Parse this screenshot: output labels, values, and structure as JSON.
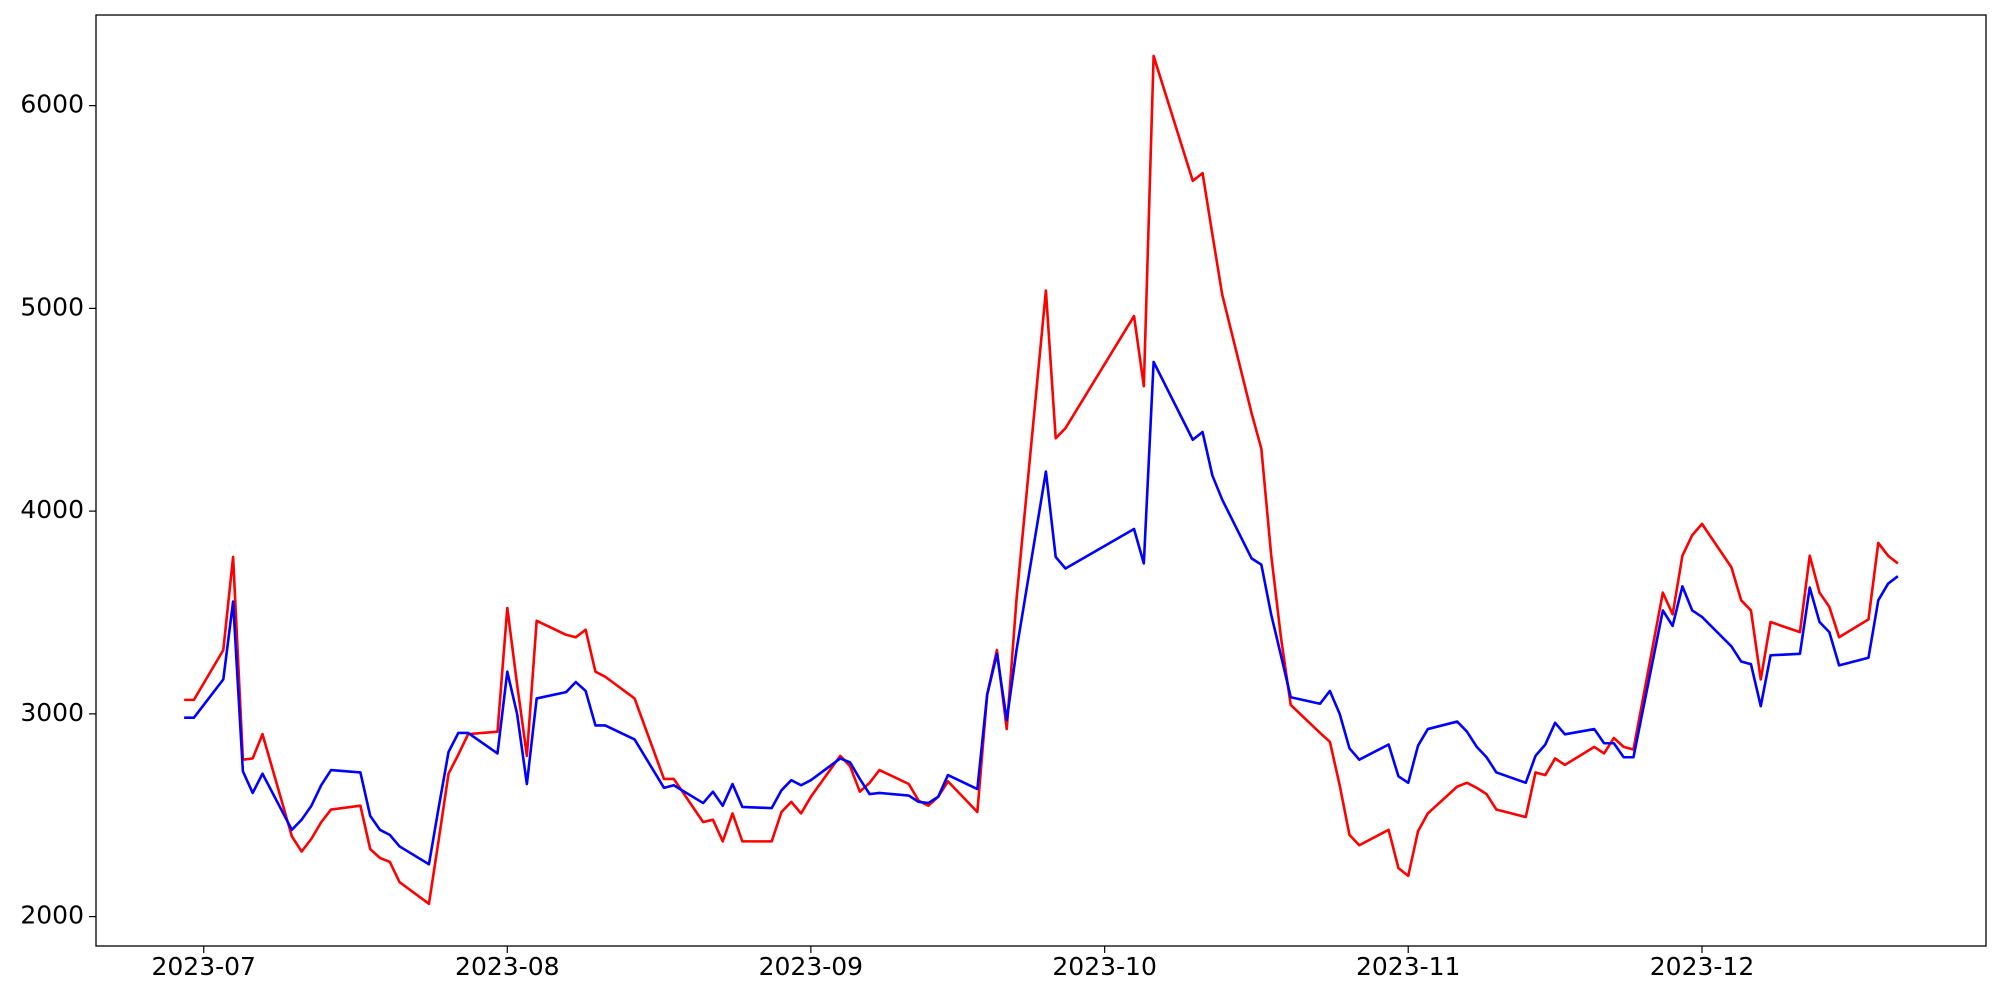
{
  "chart_data": {
    "type": "line",
    "x": [
      "2023-06-29",
      "2023-06-30",
      "2023-07-03",
      "2023-07-04",
      "2023-07-05",
      "2023-07-06",
      "2023-07-07",
      "2023-07-10",
      "2023-07-11",
      "2023-07-12",
      "2023-07-13",
      "2023-07-14",
      "2023-07-17",
      "2023-07-18",
      "2023-07-19",
      "2023-07-20",
      "2023-07-21",
      "2023-07-24",
      "2023-07-25",
      "2023-07-26",
      "2023-07-27",
      "2023-07-28",
      "2023-07-31",
      "2023-08-01",
      "2023-08-02",
      "2023-08-03",
      "2023-08-04",
      "2023-08-07",
      "2023-08-08",
      "2023-08-09",
      "2023-08-10",
      "2023-08-11",
      "2023-08-14",
      "2023-08-17",
      "2023-08-18",
      "2023-08-21",
      "2023-08-22",
      "2023-08-23",
      "2023-08-24",
      "2023-08-25",
      "2023-08-28",
      "2023-08-29",
      "2023-08-30",
      "2023-08-31",
      "2023-09-01",
      "2023-09-04",
      "2023-09-05",
      "2023-09-06",
      "2023-09-07",
      "2023-09-08",
      "2023-09-11",
      "2023-09-12",
      "2023-09-13",
      "2023-09-14",
      "2023-09-15",
      "2023-09-18",
      "2023-09-19",
      "2023-09-20",
      "2023-09-21",
      "2023-09-22",
      "2023-09-25",
      "2023-09-26",
      "2023-09-27",
      "2023-10-04",
      "2023-10-05",
      "2023-10-06",
      "2023-10-10",
      "2023-10-11",
      "2023-10-12",
      "2023-10-13",
      "2023-10-16",
      "2023-10-17",
      "2023-10-18",
      "2023-10-19",
      "2023-10-20",
      "2023-10-23",
      "2023-10-24",
      "2023-10-25",
      "2023-10-26",
      "2023-10-27",
      "2023-10-30",
      "2023-10-31",
      "2023-11-01",
      "2023-11-02",
      "2023-11-03",
      "2023-11-06",
      "2023-11-07",
      "2023-11-08",
      "2023-11-09",
      "2023-11-10",
      "2023-11-13",
      "2023-11-14",
      "2023-11-15",
      "2023-11-16",
      "2023-11-17",
      "2023-11-20",
      "2023-11-21",
      "2023-11-22",
      "2023-11-23",
      "2023-11-24",
      "2023-11-27",
      "2023-11-28",
      "2023-11-29",
      "2023-11-30",
      "2023-12-01",
      "2023-12-04",
      "2023-12-05",
      "2023-12-06",
      "2023-12-07",
      "2023-12-08",
      "2023-12-11",
      "2023-12-12",
      "2023-12-13",
      "2023-12-14",
      "2023-12-15",
      "2023-12-18",
      "2023-12-19",
      "2023-12-20",
      "2023-12-21"
    ],
    "series": [
      {
        "color": "red",
        "values": [
          3069,
          3069,
          3315,
          3774,
          2774,
          2780,
          2900,
          2396,
          2321,
          2384,
          2466,
          2528,
          2547,
          2333,
          2289,
          2270,
          2170,
          2063,
          2380,
          2705,
          2799,
          2900,
          2912,
          3522,
          3145,
          2793,
          3459,
          3390,
          3378,
          3415,
          3208,
          3183,
          3076,
          2679,
          2679,
          2466,
          2478,
          2371,
          2509,
          2371,
          2371,
          2516,
          2566,
          2509,
          2591,
          2793,
          2742,
          2616,
          2660,
          2723,
          2654,
          2572,
          2547,
          2591,
          2667,
          2516,
          3094,
          3315,
          2925,
          3566,
          5088,
          4359,
          4409,
          4962,
          4616,
          6245,
          5629,
          5667,
          5365,
          5069,
          4484,
          4308,
          3786,
          3378,
          3044,
          2906,
          2862,
          2648,
          2403,
          2352,
          2428,
          2239,
          2201,
          2421,
          2509,
          2641,
          2660,
          2635,
          2604,
          2528,
          2491,
          2711,
          2698,
          2780,
          2748,
          2837,
          2805,
          2881,
          2837,
          2824,
          3598,
          3491,
          3780,
          3881,
          3937,
          3723,
          3560,
          3510,
          3170,
          3453,
          3403,
          3780,
          3598,
          3528,
          3378,
          3466,
          3843,
          3780,
          3742
        ]
      },
      {
        "color": "blue",
        "values": [
          2981,
          2981,
          3170,
          3554,
          2717,
          2610,
          2705,
          2428,
          2478,
          2547,
          2648,
          2723,
          2711,
          2497,
          2428,
          2403,
          2346,
          2258,
          2540,
          2812,
          2906,
          2906,
          2805,
          3208,
          3000,
          2654,
          3076,
          3107,
          3157,
          3113,
          2943,
          2943,
          2874,
          2635,
          2648,
          2560,
          2616,
          2547,
          2654,
          2541,
          2535,
          2623,
          2673,
          2648,
          2673,
          2780,
          2761,
          2679,
          2604,
          2610,
          2597,
          2566,
          2560,
          2591,
          2698,
          2629,
          3094,
          3296,
          2969,
          3315,
          4195,
          3774,
          3717,
          3912,
          3742,
          4736,
          4352,
          4390,
          4176,
          4057,
          3767,
          3736,
          3491,
          3289,
          3082,
          3050,
          3113,
          3000,
          2830,
          2774,
          2849,
          2692,
          2660,
          2843,
          2925,
          2962,
          2912,
          2837,
          2786,
          2711,
          2660,
          2793,
          2849,
          2956,
          2899,
          2925,
          2855,
          2855,
          2786,
          2786,
          3510,
          3434,
          3629,
          3510,
          3478,
          3333,
          3258,
          3245,
          3038,
          3289,
          3296,
          3623,
          3453,
          3403,
          3239,
          3277,
          3560,
          3642,
          3679
        ]
      }
    ],
    "xlim": [
      "2023-06-20",
      "2023-12-30"
    ],
    "xticks": [
      {
        "value": "2023-07-01",
        "label": "2023-07"
      },
      {
        "value": "2023-08-01",
        "label": "2023-08"
      },
      {
        "value": "2023-09-01",
        "label": "2023-09"
      },
      {
        "value": "2023-10-01",
        "label": "2023-10"
      },
      {
        "value": "2023-11-01",
        "label": "2023-11"
      },
      {
        "value": "2023-12-01",
        "label": "2023-12"
      }
    ],
    "ylim": [
      1855,
      6447
    ],
    "yticks": [
      2000,
      3000,
      4000,
      5000,
      6000
    ],
    "grid": false
  }
}
